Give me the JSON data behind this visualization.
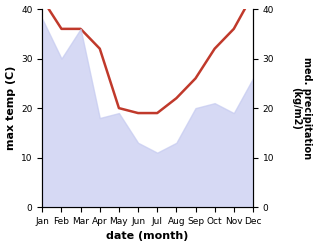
{
  "months": [
    "Jan",
    "Feb",
    "Mar",
    "Apr",
    "May",
    "Jun",
    "Jul",
    "Aug",
    "Sep",
    "Oct",
    "Nov",
    "Dec"
  ],
  "max_temp": [
    42,
    36,
    36,
    32,
    20,
    19,
    19,
    22,
    26,
    32,
    36,
    43
  ],
  "precipitation": [
    38,
    30,
    36,
    18,
    19,
    13,
    11,
    13,
    20,
    21,
    19,
    26
  ],
  "temp_color": "#c0392b",
  "precip_fill_color": "#c5caf0",
  "precip_alpha": 0.7,
  "xlabel": "date (month)",
  "ylabel_left": "max temp (C)",
  "ylabel_right": "med. precipitation\n(kg/m2)",
  "ylim": [
    0,
    40
  ],
  "yticks": [
    0,
    10,
    20,
    30,
    40
  ],
  "bg_color": "#ffffff",
  "line_width": 1.8
}
